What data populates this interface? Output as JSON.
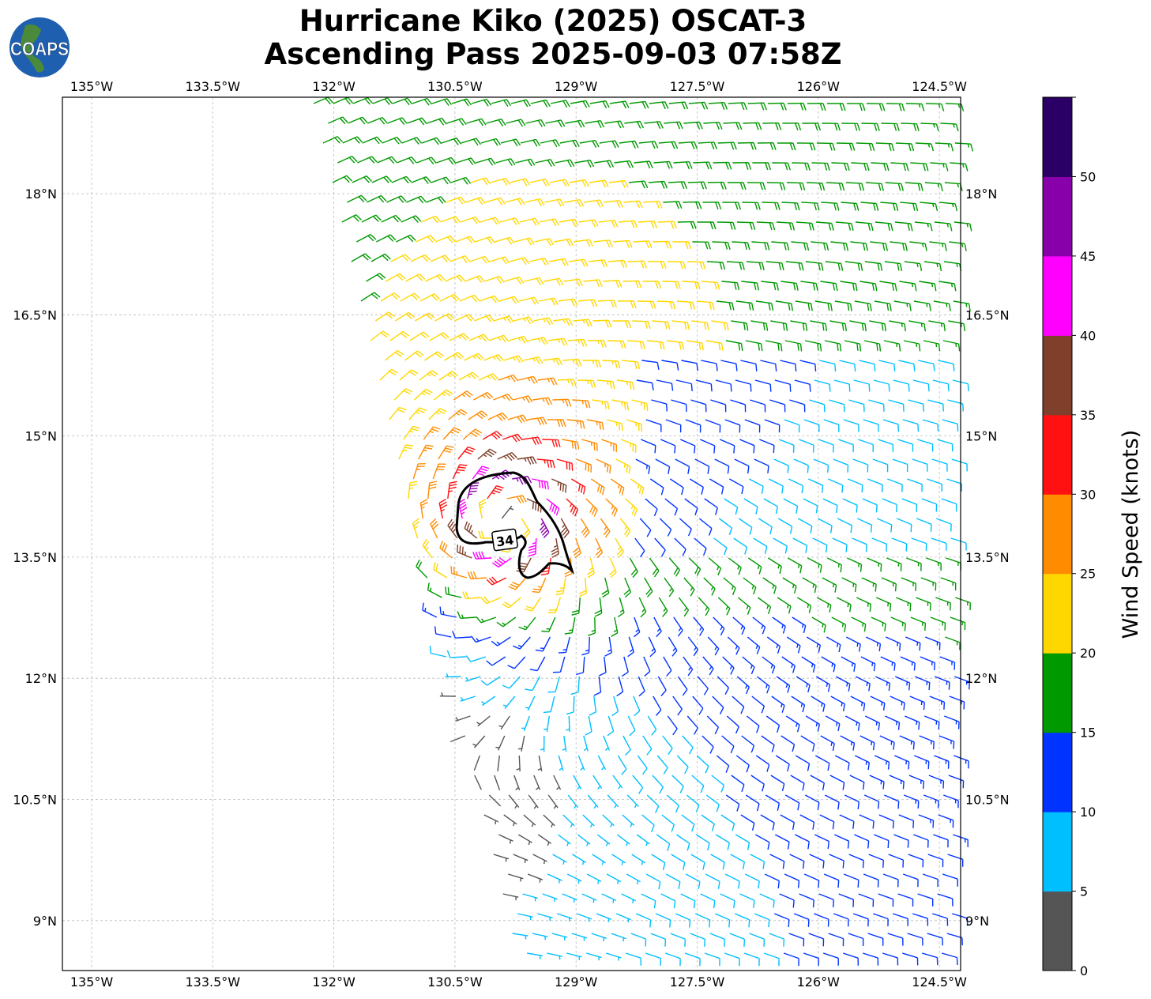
{
  "title": {
    "line1": "Hurricane Kiko (2025) OSCAT-3",
    "line2": "Ascending Pass 2025-09-03 07:58Z"
  },
  "logo": {
    "text": "COAPS"
  },
  "chart_data": {
    "type": "wind-barb-map",
    "title": "Hurricane Kiko (2025) OSCAT-3 Ascending Pass 2025-09-03 07:58Z",
    "lon_range": [
      -135.35,
      -124.25
    ],
    "lat_range": [
      8.4,
      19.2
    ],
    "lon_ticks": [
      {
        "value": -135,
        "label": "135°W"
      },
      {
        "value": -133.5,
        "label": "133.5°W"
      },
      {
        "value": -132,
        "label": "132°W"
      },
      {
        "value": -130.5,
        "label": "130.5°W"
      },
      {
        "value": -129,
        "label": "129°W"
      },
      {
        "value": -127.5,
        "label": "127.5°W"
      },
      {
        "value": -126,
        "label": "126°W"
      },
      {
        "value": -124.5,
        "label": "124.5°W"
      }
    ],
    "lat_ticks": [
      {
        "value": 18,
        "label": "18°N"
      },
      {
        "value": 16.5,
        "label": "16.5°N"
      },
      {
        "value": 15,
        "label": "15°N"
      },
      {
        "value": 13.5,
        "label": "13.5°N"
      },
      {
        "value": 12,
        "label": "12°N"
      },
      {
        "value": 10.5,
        "label": "10.5°N"
      },
      {
        "value": 9,
        "label": "9°N"
      }
    ],
    "grid": true,
    "storm_center": {
      "lon": -129.9,
      "lat": 13.95
    },
    "max_wind_kt": 48,
    "contour": {
      "level_kt": 34,
      "label": "34"
    },
    "colorbar": {
      "label": "Wind Speed (knots)",
      "range": [
        0,
        55
      ],
      "ticks": [
        "0",
        "5",
        "10",
        "15",
        "20",
        "25",
        "30",
        "35",
        "40",
        "45",
        "50"
      ],
      "bins": [
        {
          "min": 0,
          "max": 5,
          "color": "#555555"
        },
        {
          "min": 5,
          "max": 10,
          "color": "#00bfff"
        },
        {
          "min": 10,
          "max": 15,
          "color": "#0033ff"
        },
        {
          "min": 15,
          "max": 20,
          "color": "#009900"
        },
        {
          "min": 20,
          "max": 25,
          "color": "#ffd700"
        },
        {
          "min": 25,
          "max": 30,
          "color": "#ff8c00"
        },
        {
          "min": 30,
          "max": 35,
          "color": "#ff1111"
        },
        {
          "min": 35,
          "max": 40,
          "color": "#7f3f2a"
        },
        {
          "min": 40,
          "max": 45,
          "color": "#ff00ff"
        },
        {
          "min": 45,
          "max": 50,
          "color": "#8800aa"
        },
        {
          "min": 50,
          "max": 55,
          "color": "#2a0066"
        }
      ]
    }
  }
}
